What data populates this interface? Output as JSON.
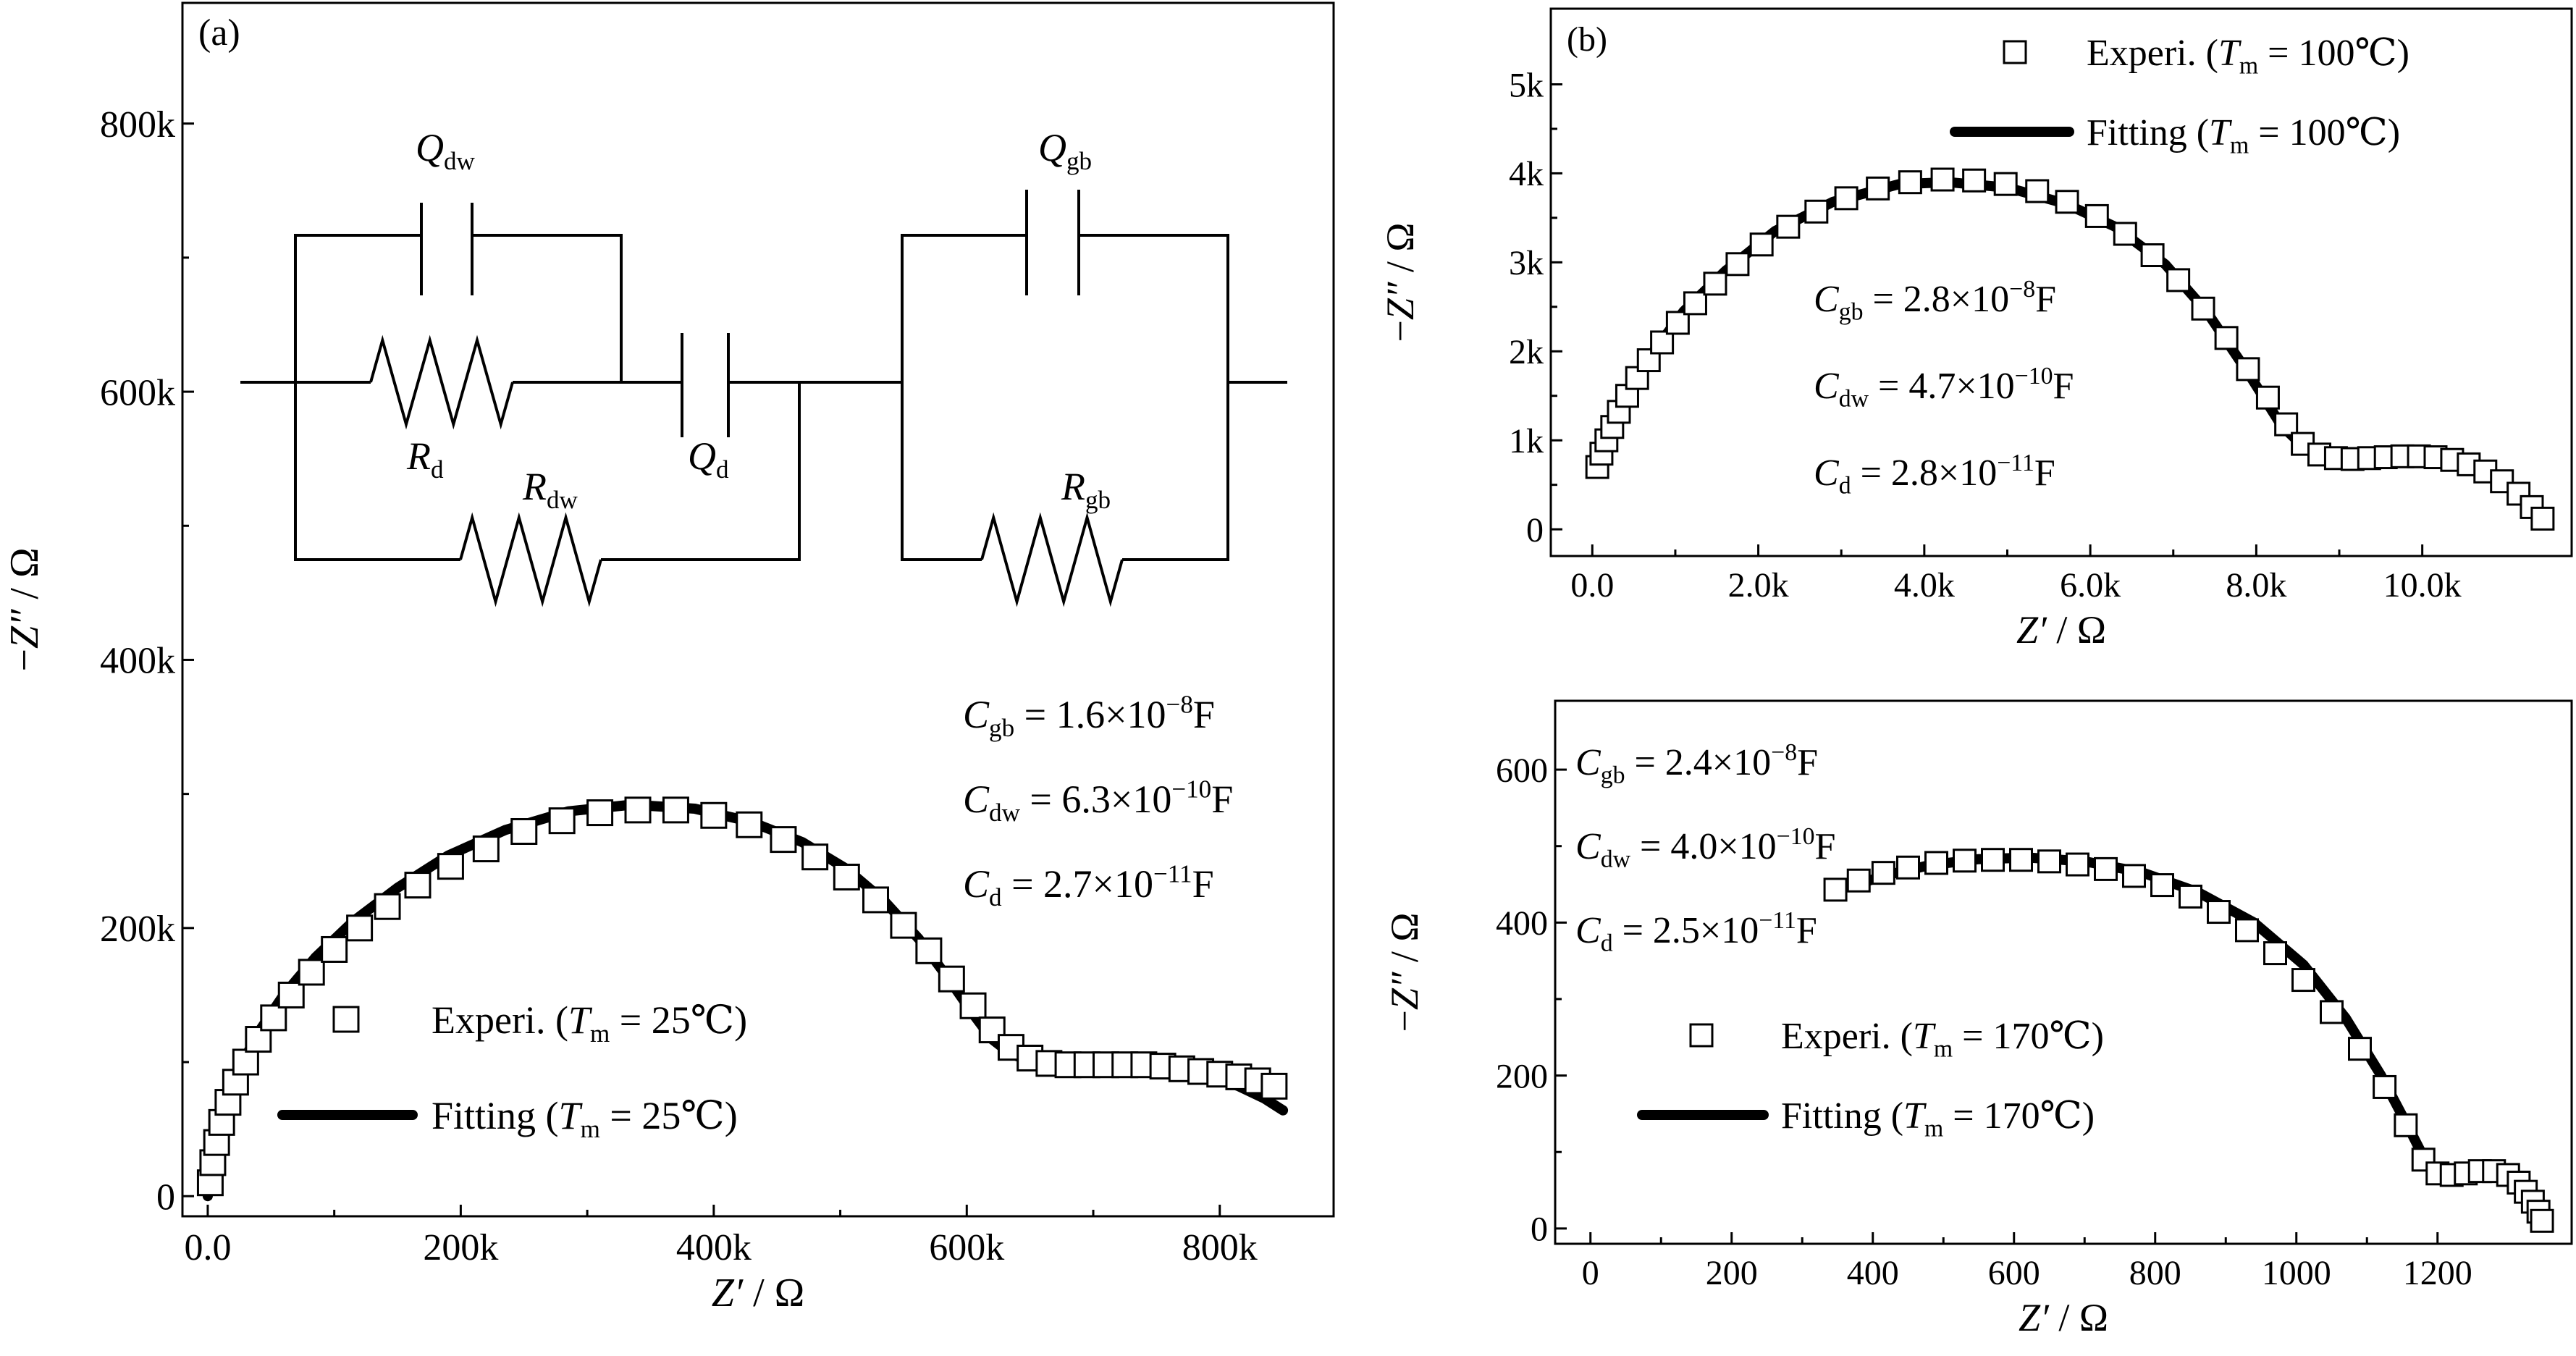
{
  "chart_data": [
    {
      "type": "scatter",
      "panel_label": "(a)",
      "xlabel": "Z′ / Ω",
      "ylabel": "−Z″ / Ω",
      "xlim": [
        -20000,
        890000
      ],
      "ylim": [
        -15000,
        890000
      ],
      "x_ticks": [
        0,
        200000,
        400000,
        600000,
        800000
      ],
      "x_tick_labels": [
        "0.0",
        "200k",
        "400k",
        "600k",
        "800k"
      ],
      "y_ticks": [
        0,
        200000,
        400000,
        600000,
        800000
      ],
      "y_tick_labels": [
        "0",
        "200k",
        "400k",
        "600k",
        "800k"
      ],
      "legend": {
        "placement": "lower-left",
        "experiment": "Experi. (Tm = 25℃)",
        "fitting": "Fitting (Tm = 25℃)"
      },
      "capacitance": [
        {
          "symbol": "C",
          "sub": "gb",
          "value": "= 1.6×10",
          "exp": "−8",
          "unit": "F"
        },
        {
          "symbol": "C",
          "sub": "dw",
          "value": "= 6.3×10",
          "exp": "−10",
          "unit": "F"
        },
        {
          "symbol": "C",
          "sub": "d",
          "value": "= 2.7×10",
          "exp": "−11",
          "unit": "F"
        }
      ],
      "circuit_labels": {
        "q_dw": {
          "symbol": "Q",
          "sub": "dw"
        },
        "r_d": {
          "symbol": "R",
          "sub": "d"
        },
        "q_d": {
          "symbol": "Q",
          "sub": "d"
        },
        "r_dw": {
          "symbol": "R",
          "sub": "dw"
        },
        "q_gb": {
          "symbol": "Q",
          "sub": "gb"
        },
        "r_gb": {
          "symbol": "R",
          "sub": "gb"
        }
      },
      "series": [
        {
          "name": "Experi. (Tm = 25℃)",
          "marker": "open-square",
          "points": [
            [
              2000,
              10000
            ],
            [
              4000,
              25000
            ],
            [
              7000,
              40000
            ],
            [
              11000,
              55000
            ],
            [
              16000,
              70000
            ],
            [
              22000,
              85000
            ],
            [
              30000,
              100000
            ],
            [
              40000,
              117000
            ],
            [
              52000,
              133000
            ],
            [
              66000,
              150000
            ],
            [
              82000,
              167000
            ],
            [
              100000,
              184000
            ],
            [
              120000,
              200000
            ],
            [
              142000,
              216000
            ],
            [
              166000,
              232000
            ],
            [
              192000,
              246000
            ],
            [
              220000,
              259000
            ],
            [
              250000,
              272000
            ],
            [
              280000,
              280000
            ],
            [
              310000,
              286000
            ],
            [
              340000,
              288000
            ],
            [
              370000,
              288000
            ],
            [
              400000,
              284000
            ],
            [
              428000,
              277000
            ],
            [
              455000,
              266000
            ],
            [
              480000,
              253000
            ],
            [
              505000,
              238000
            ],
            [
              528000,
              221000
            ],
            [
              550000,
              202000
            ],
            [
              570000,
              183000
            ],
            [
              588000,
              162000
            ],
            [
              605000,
              142000
            ],
            [
              620000,
              124000
            ],
            [
              635000,
              111000
            ],
            [
              650000,
              103000
            ],
            [
              665000,
              99000
            ],
            [
              680000,
              98000
            ],
            [
              695000,
              98000
            ],
            [
              710000,
              98000
            ],
            [
              725000,
              98000
            ],
            [
              740000,
              98000
            ],
            [
              755000,
              97000
            ],
            [
              770000,
              95000
            ],
            [
              785000,
              93000
            ],
            [
              800000,
              91000
            ],
            [
              815000,
              89000
            ],
            [
              830000,
              86000
            ],
            [
              843000,
              82000
            ]
          ]
        },
        {
          "name": "Fitting (Tm = 25℃)",
          "line": true,
          "points": [
            [
              0,
              0
            ],
            [
              3000,
              20000
            ],
            [
              8000,
              45000
            ],
            [
              15000,
              70000
            ],
            [
              25000,
              95000
            ],
            [
              40000,
              122000
            ],
            [
              60000,
              150000
            ],
            [
              85000,
              178000
            ],
            [
              115000,
              205000
            ],
            [
              150000,
              230000
            ],
            [
              190000,
              254000
            ],
            [
              235000,
              273000
            ],
            [
              285000,
              287000
            ],
            [
              335000,
              292000
            ],
            [
              385000,
              289000
            ],
            [
              430000,
              279000
            ],
            [
              470000,
              264000
            ],
            [
              505000,
              244000
            ],
            [
              535000,
              220000
            ],
            [
              562000,
              192000
            ],
            [
              585000,
              163000
            ],
            [
              605000,
              136000
            ],
            [
              620000,
              117000
            ],
            [
              635000,
              106000
            ],
            [
              650000,
              101000
            ],
            [
              670000,
              99000
            ],
            [
              700000,
              99000
            ],
            [
              730000,
              100000
            ],
            [
              760000,
              97000
            ],
            [
              790000,
              90000
            ],
            [
              815000,
              82000
            ],
            [
              835000,
              73000
            ],
            [
              850000,
              64000
            ]
          ]
        }
      ]
    },
    {
      "type": "scatter",
      "panel_label": "(b)",
      "xlabel": "Z′ / Ω",
      "ylabel": "−Z″ / Ω",
      "xlim": [
        -500,
        11800
      ],
      "ylim": [
        -300,
        5850
      ],
      "x_ticks": [
        0,
        2000,
        4000,
        6000,
        8000,
        10000
      ],
      "x_tick_labels": [
        "0.0",
        "2.0k",
        "4.0k",
        "6.0k",
        "8.0k",
        "10.0k"
      ],
      "y_ticks": [
        0,
        1000,
        2000,
        3000,
        4000,
        5000
      ],
      "y_tick_labels": [
        "0",
        "1k",
        "2k",
        "3k",
        "4k",
        "5k"
      ],
      "legend": {
        "placement": "top-right",
        "experiment": "Experi. (Tm = 100℃)",
        "fitting": "Fitting (Tm = 100℃)"
      },
      "capacitance": [
        {
          "symbol": "C",
          "sub": "gb",
          "value": "= 2.8×10",
          "exp": "−8",
          "unit": "F"
        },
        {
          "symbol": "C",
          "sub": "dw",
          "value": "= 4.7×10",
          "exp": "−10",
          "unit": "F"
        },
        {
          "symbol": "C",
          "sub": "d",
          "value": "= 2.8×10",
          "exp": "−11",
          "unit": "F"
        }
      ],
      "series": [
        {
          "name": "Experi. (Tm = 100℃)",
          "marker": "open-square",
          "points": [
            [
              60,
              700
            ],
            [
              110,
              850
            ],
            [
              170,
              1000
            ],
            [
              240,
              1150
            ],
            [
              320,
              1320
            ],
            [
              420,
              1500
            ],
            [
              540,
              1700
            ],
            [
              680,
              1900
            ],
            [
              840,
              2100
            ],
            [
              1030,
              2320
            ],
            [
              1240,
              2540
            ],
            [
              1480,
              2760
            ],
            [
              1750,
              2980
            ],
            [
              2040,
              3200
            ],
            [
              2360,
              3400
            ],
            [
              2700,
              3570
            ],
            [
              3060,
              3720
            ],
            [
              3440,
              3830
            ],
            [
              3830,
              3900
            ],
            [
              4220,
              3930
            ],
            [
              4600,
              3920
            ],
            [
              4980,
              3880
            ],
            [
              5360,
              3800
            ],
            [
              5720,
              3680
            ],
            [
              6080,
              3520
            ],
            [
              6420,
              3320
            ],
            [
              6750,
              3080
            ],
            [
              7060,
              2800
            ],
            [
              7360,
              2480
            ],
            [
              7640,
              2150
            ],
            [
              7900,
              1800
            ],
            [
              8140,
              1480
            ],
            [
              8360,
              1180
            ],
            [
              8560,
              960
            ],
            [
              8760,
              840
            ],
            [
              8960,
              800
            ],
            [
              9160,
              790
            ],
            [
              9360,
              800
            ],
            [
              9560,
              810
            ],
            [
              9760,
              820
            ],
            [
              9960,
              820
            ],
            [
              10160,
              810
            ],
            [
              10360,
              780
            ],
            [
              10560,
              730
            ],
            [
              10760,
              650
            ],
            [
              10960,
              540
            ],
            [
              11160,
              400
            ],
            [
              11320,
              250
            ],
            [
              11450,
              120
            ]
          ]
        },
        {
          "name": "Fitting (Tm = 100℃)",
          "line": true,
          "points": [
            [
              80,
              700
            ],
            [
              200,
              1100
            ],
            [
              400,
              1500
            ],
            [
              700,
              1950
            ],
            [
              1100,
              2450
            ],
            [
              1600,
              2900
            ],
            [
              2200,
              3350
            ],
            [
              2900,
              3680
            ],
            [
              3700,
              3880
            ],
            [
              4300,
              3900
            ],
            [
              5000,
              3840
            ],
            [
              5700,
              3660
            ],
            [
              6300,
              3400
            ],
            [
              6900,
              2980
            ],
            [
              7400,
              2450
            ],
            [
              7900,
              1760
            ],
            [
              8300,
              1170
            ],
            [
              8600,
              900
            ],
            [
              8900,
              800
            ],
            [
              9300,
              790
            ],
            [
              9800,
              800
            ],
            [
              10200,
              780
            ],
            [
              10600,
              690
            ],
            [
              11000,
              500
            ],
            [
              11300,
              300
            ],
            [
              11450,
              150
            ]
          ]
        }
      ]
    },
    {
      "type": "scatter",
      "xlabel": "Z′ / Ω",
      "ylabel": "−Z″ / Ω",
      "xlim": [
        -50,
        1390
      ],
      "ylim": [
        -20,
        690
      ],
      "x_ticks": [
        0,
        200,
        400,
        600,
        800,
        1000,
        1200
      ],
      "x_tick_labels": [
        "0",
        "200",
        "400",
        "600",
        "800",
        "1000",
        "1200"
      ],
      "y_ticks": [
        0,
        200,
        400,
        600
      ],
      "y_tick_labels": [
        "0",
        "200",
        "400",
        "600"
      ],
      "legend": {
        "placement": "lower-left",
        "experiment": "Experi. (Tm = 170℃)",
        "fitting": "Fitting (Tm = 170℃)"
      },
      "capacitance": [
        {
          "symbol": "C",
          "sub": "gb",
          "value": "= 2.4×10",
          "exp": "−8",
          "unit": "F"
        },
        {
          "symbol": "C",
          "sub": "dw",
          "value": "= 4.0×10",
          "exp": "−10",
          "unit": "F"
        },
        {
          "symbol": "C",
          "sub": "d",
          "value": "= 2.5×10",
          "exp": "−11",
          "unit": "F"
        }
      ],
      "series": [
        {
          "name": "Experi. (Tm = 170℃)",
          "marker": "open-square",
          "points": [
            [
              347,
              443
            ],
            [
              380,
              455
            ],
            [
              415,
              465
            ],
            [
              450,
              472
            ],
            [
              490,
              478
            ],
            [
              530,
              481
            ],
            [
              570,
              482
            ],
            [
              610,
              482
            ],
            [
              650,
              480
            ],
            [
              690,
              476
            ],
            [
              730,
              470
            ],
            [
              770,
              461
            ],
            [
              810,
              449
            ],
            [
              850,
              434
            ],
            [
              890,
              414
            ],
            [
              930,
              390
            ],
            [
              970,
              360
            ],
            [
              1010,
              325
            ],
            [
              1050,
              283
            ],
            [
              1090,
              235
            ],
            [
              1125,
              185
            ],
            [
              1155,
              135
            ],
            [
              1180,
              90
            ],
            [
              1200,
              72
            ],
            [
              1220,
              70
            ],
            [
              1240,
              72
            ],
            [
              1260,
              75
            ],
            [
              1280,
              75
            ],
            [
              1300,
              70
            ],
            [
              1315,
              60
            ],
            [
              1325,
              48
            ],
            [
              1335,
              35
            ],
            [
              1343,
              22
            ],
            [
              1348,
              10
            ]
          ]
        },
        {
          "name": "Fitting (Tm = 170℃)",
          "line": true,
          "points": [
            [
              370,
              448
            ],
            [
              420,
              462
            ],
            [
              480,
              475
            ],
            [
              550,
              483
            ],
            [
              620,
              485
            ],
            [
              700,
              480
            ],
            [
              780,
              466
            ],
            [
              860,
              440
            ],
            [
              940,
              400
            ],
            [
              1010,
              345
            ],
            [
              1070,
              275
            ],
            [
              1120,
              200
            ],
            [
              1160,
              130
            ],
            [
              1185,
              85
            ],
            [
              1210,
              68
            ],
            [
              1240,
              68
            ],
            [
              1270,
              72
            ],
            [
              1295,
              68
            ],
            [
              1315,
              55
            ],
            [
              1330,
              40
            ],
            [
              1340,
              25
            ],
            [
              1348,
              10
            ]
          ]
        }
      ]
    }
  ]
}
